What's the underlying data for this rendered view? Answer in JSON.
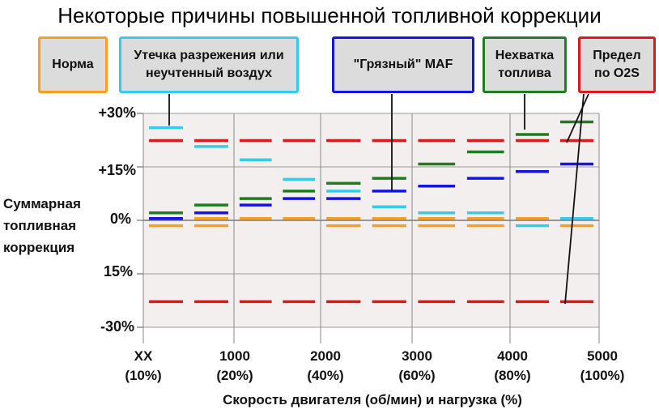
{
  "chart_data": {
    "type": "line",
    "title": "Некоторые причины повышенной топливной коррекции",
    "xlabel": "Скорость двигателя (об/мин) и нагрузка (%)",
    "ylabel": [
      "Суммарная",
      "топливная",
      "коррекция"
    ],
    "x_ticks": [
      {
        "rpm": "XX",
        "load": "(10%)"
      },
      {
        "rpm": "1000",
        "load": "(20%)"
      },
      {
        "rpm": "2000",
        "load": "(40%)"
      },
      {
        "rpm": "3000",
        "load": "(60%)"
      },
      {
        "rpm": "4000",
        "load": "(80%)"
      },
      {
        "rpm": "5000",
        "load": "(100%)"
      }
    ],
    "y_ticks": [
      "+30%",
      "+15%",
      "0%",
      "15%",
      "-30%"
    ],
    "ylim": [
      -30,
      30
    ],
    "grid": true,
    "legend_position": "top",
    "segment_rpm": [
      250,
      750,
      1250,
      1750,
      2250,
      2750,
      3250,
      3750,
      4250,
      4750
    ],
    "series": [
      {
        "name": "Норма",
        "color": "#f5a023",
        "segments": [
          {
            "y": -1.5,
            "xs": [
              250,
              750,
              2250,
              2750,
              3250,
              3750,
              4750
            ]
          },
          {
            "y": 0.5,
            "xs": [
              250,
              750,
              1250,
              1750,
              2250,
              2750,
              3250,
              3750,
              4250,
              4750
            ]
          }
        ]
      },
      {
        "name": "Утечка разрежения или неучтенный воздух",
        "color": "#33ccee",
        "segments": [
          {
            "y": 26,
            "xs": [
              250
            ]
          },
          {
            "y": 20.7,
            "xs": [
              750
            ]
          },
          {
            "y": 17,
            "xs": [
              1250
            ]
          },
          {
            "y": 11.5,
            "xs": [
              1750
            ]
          },
          {
            "y": 8.2,
            "xs": [
              2250
            ]
          },
          {
            "y": 3.8,
            "xs": [
              2750
            ]
          },
          {
            "y": 2.1,
            "xs": [
              3250
            ]
          },
          {
            "y": 2.1,
            "xs": [
              3750
            ]
          },
          {
            "y": -1.5,
            "xs": [
              4250
            ]
          },
          {
            "y": 0.5,
            "xs": [
              4750
            ]
          }
        ]
      },
      {
        "name": "\"Грязный\" MAF",
        "color": "#1515dd",
        "segments": [
          {
            "y": 0.5,
            "xs": [
              250
            ]
          },
          {
            "y": 2.1,
            "xs": [
              750
            ]
          },
          {
            "y": 4.3,
            "xs": [
              1250
            ]
          },
          {
            "y": 6.1,
            "xs": [
              1750
            ]
          },
          {
            "y": 6.1,
            "xs": [
              2250
            ]
          },
          {
            "y": 8.2,
            "xs": [
              2750
            ]
          },
          {
            "y": 9.6,
            "xs": [
              3250
            ]
          },
          {
            "y": 11.8,
            "xs": [
              3750
            ]
          },
          {
            "y": 13.7,
            "xs": [
              4250
            ]
          },
          {
            "y": 15.8,
            "xs": [
              4750
            ]
          }
        ]
      },
      {
        "name": "Нехватка топлива",
        "color": "#1e7d1e",
        "segments": [
          {
            "y": 2.1,
            "xs": [
              250
            ]
          },
          {
            "y": 4.3,
            "xs": [
              750
            ]
          },
          {
            "y": 6.1,
            "xs": [
              1250
            ]
          },
          {
            "y": 8.2,
            "xs": [
              1750
            ]
          },
          {
            "y": 10.4,
            "xs": [
              2250
            ]
          },
          {
            "y": 11.8,
            "xs": [
              2750
            ]
          },
          {
            "y": 15.8,
            "xs": [
              3250
            ]
          },
          {
            "y": 19.2,
            "xs": [
              3750
            ]
          },
          {
            "y": 24.1,
            "xs": [
              4250
            ]
          },
          {
            "y": 27.6,
            "xs": [
              4750
            ]
          }
        ]
      },
      {
        "name": "Предел по O2S",
        "color": "#dd1a1a",
        "segments": [
          {
            "y": 22.4,
            "xs": [
              250,
              750,
              1250,
              1750,
              2250,
              2750,
              3250,
              3750,
              4250,
              4750
            ]
          },
          {
            "y": -22.8,
            "xs": [
              250,
              750,
              1250,
              1750,
              2250,
              2750,
              3250,
              3750,
              4250,
              4750
            ]
          }
        ]
      }
    ]
  },
  "legend": [
    {
      "key": "norma",
      "lines": [
        "Норма"
      ],
      "border": "#f5a023"
    },
    {
      "key": "leak",
      "lines": [
        "Утечка разрежения или",
        "неучтенный воздух"
      ],
      "border": "#33ccee"
    },
    {
      "key": "maf",
      "lines": [
        "\"Грязный\" MAF"
      ],
      "border": "#1515dd"
    },
    {
      "key": "fuel",
      "lines": [
        "Нехватка",
        "топлива"
      ],
      "border": "#1e7d1e"
    },
    {
      "key": "o2s",
      "lines": [
        "Предел",
        "по O2S"
      ],
      "border": "#dd1a1a"
    }
  ]
}
